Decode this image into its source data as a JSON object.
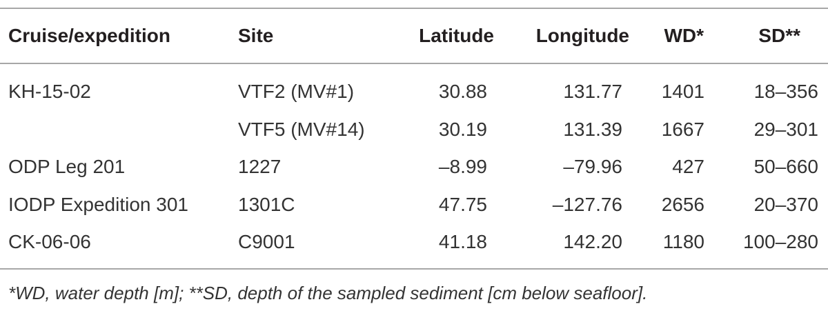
{
  "table": {
    "header": [
      "Cruise/expedition",
      "Site",
      "Latitude",
      "Longitude",
      "WD*",
      "SD**"
    ],
    "rows": [
      [
        "KH-15-02",
        "VTF2 (MV#1)",
        "30.88",
        "131.77",
        "1401",
        "18–356"
      ],
      [
        null,
        "VTF5 (MV#14)",
        "30.19",
        "131.39",
        "1667",
        "29–301"
      ],
      [
        "ODP Leg 201",
        "1227",
        "–8.99",
        "–79.96",
        "427",
        "50–660"
      ],
      [
        "IODP Expedition 301",
        "1301C",
        "47.75",
        "–127.76",
        "2656",
        "20–370"
      ],
      [
        "CK-06-06",
        "C9001",
        "41.18",
        "142.20",
        "1180",
        "100–280"
      ]
    ],
    "footnote": "*WD, water depth [m]; **SD, depth of the sampled sediment [cm below seafloor]."
  }
}
